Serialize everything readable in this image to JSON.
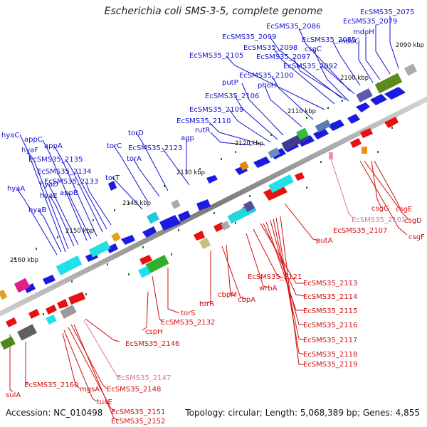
{
  "header": {
    "title": "Escherichia coli SMS-3-5, complete genome"
  },
  "footer": {
    "accession": "Accession: NC_010498",
    "summary": "Topology: circular; Length: 5,068,389 bp; Genes: 4,855"
  },
  "colors": {
    "top_label": "#1010d0",
    "bottom_label": "#d01010",
    "pseudo_label": "#e070a8",
    "backbone": "#8a8a8a",
    "tick": "#1a7a1a"
  },
  "tick_labels": [
    "2090 kbp",
    "2100 kbp",
    "2110 kbp",
    "2120 kbp",
    "2130 kbp",
    "2140 kbp",
    "2150 kbp",
    "2160 kbp"
  ],
  "top_labels": [
    "EcSMS35_2075",
    "EcSMS35_2079",
    "mdoH",
    "EcSMS35_2086",
    "EcSMS35_2085",
    "mdoG",
    "EcSMS35_2099",
    "csgC",
    "EcSMS35_2098",
    "EcSMS35_2105",
    "EcSMS35_2097",
    "EcSMS35_2092",
    "EcSMS35_2100",
    "putP",
    "phoH",
    "EcSMS35_2106",
    "EcSMS35_2109",
    "EcSMS35_2110",
    "rutR",
    "torD",
    "torC",
    "EcSMS35_2123",
    "torA",
    "agp",
    "torT",
    "hyaC",
    "appC",
    "hyaF",
    "appA",
    "EcSMS35_2135",
    "EcSMS35_2134",
    "hyaA",
    "hyaD",
    "EcSMS35_2133",
    "hyaE",
    "appB",
    "hyaB"
  ],
  "bottom_labels": [
    "csgG",
    "csgE",
    "EcSMS35_2101",
    "csgD",
    "EcSMS35_2107",
    "csgF",
    "putA",
    "EcSMS35_2121",
    "EcSMS35_2113",
    "wrbA",
    "EcSMS35_2114",
    "cbpM",
    "cbpA",
    "EcSMS35_2115",
    "torR",
    "EcSMS35_2116",
    "torS",
    "EcSMS35_2132",
    "EcSMS35_2117",
    "cspH",
    "EcSMS35_2118",
    "EcSMS35_2146",
    "EcSMS35_2119",
    "EcSMS35_2147",
    "EcSMS35_2160",
    "mgsA",
    "EcSMS35_2148",
    "sulA",
    "tusE",
    "EcSMS35_2151",
    "EcSMS35_2152"
  ]
}
